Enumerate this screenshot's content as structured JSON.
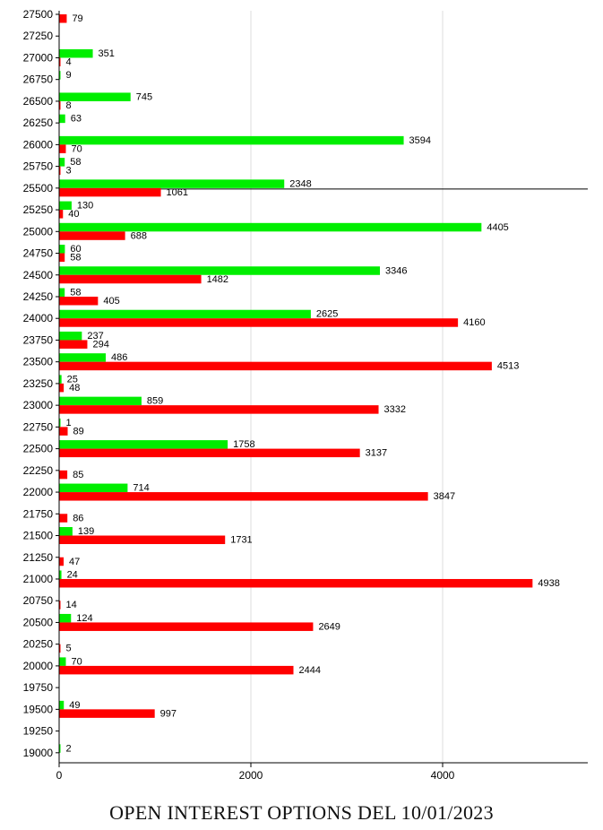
{
  "chart_data": {
    "type": "bar",
    "orientation": "horizontal",
    "title": "OPEN INTEREST OPTIONS DEL 10/01/2023",
    "xlim": [
      0,
      5500
    ],
    "x_ticks": [
      0,
      2000,
      4000
    ],
    "grid": "vertical",
    "reference_line_at": "25500",
    "categories": [
      "27500",
      "27250",
      "27000",
      "26750",
      "26500",
      "26250",
      "26000",
      "25750",
      "25500",
      "25250",
      "25000",
      "24750",
      "24500",
      "24250",
      "24000",
      "23750",
      "23500",
      "23250",
      "23000",
      "22750",
      "22500",
      "22250",
      "22000",
      "21750",
      "21500",
      "21250",
      "21000",
      "20750",
      "20500",
      "20250",
      "20000",
      "19750",
      "19500",
      "19250",
      "19000"
    ],
    "series": [
      {
        "color": "#00ee00",
        "values": [
          null,
          null,
          351,
          9,
          745,
          63,
          3594,
          58,
          2348,
          130,
          4405,
          60,
          3346,
          58,
          2625,
          237,
          486,
          25,
          859,
          1,
          1758,
          null,
          714,
          null,
          139,
          null,
          24,
          null,
          124,
          null,
          70,
          null,
          49,
          null,
          2
        ]
      },
      {
        "color": "#ff0000",
        "values": [
          79,
          null,
          4,
          null,
          8,
          null,
          70,
          3,
          1061,
          40,
          688,
          58,
          1482,
          405,
          4160,
          294,
          4513,
          48,
          3332,
          89,
          3137,
          85,
          3847,
          86,
          1731,
          47,
          4938,
          14,
          2649,
          5,
          2444,
          null,
          997,
          null,
          null
        ]
      }
    ]
  }
}
